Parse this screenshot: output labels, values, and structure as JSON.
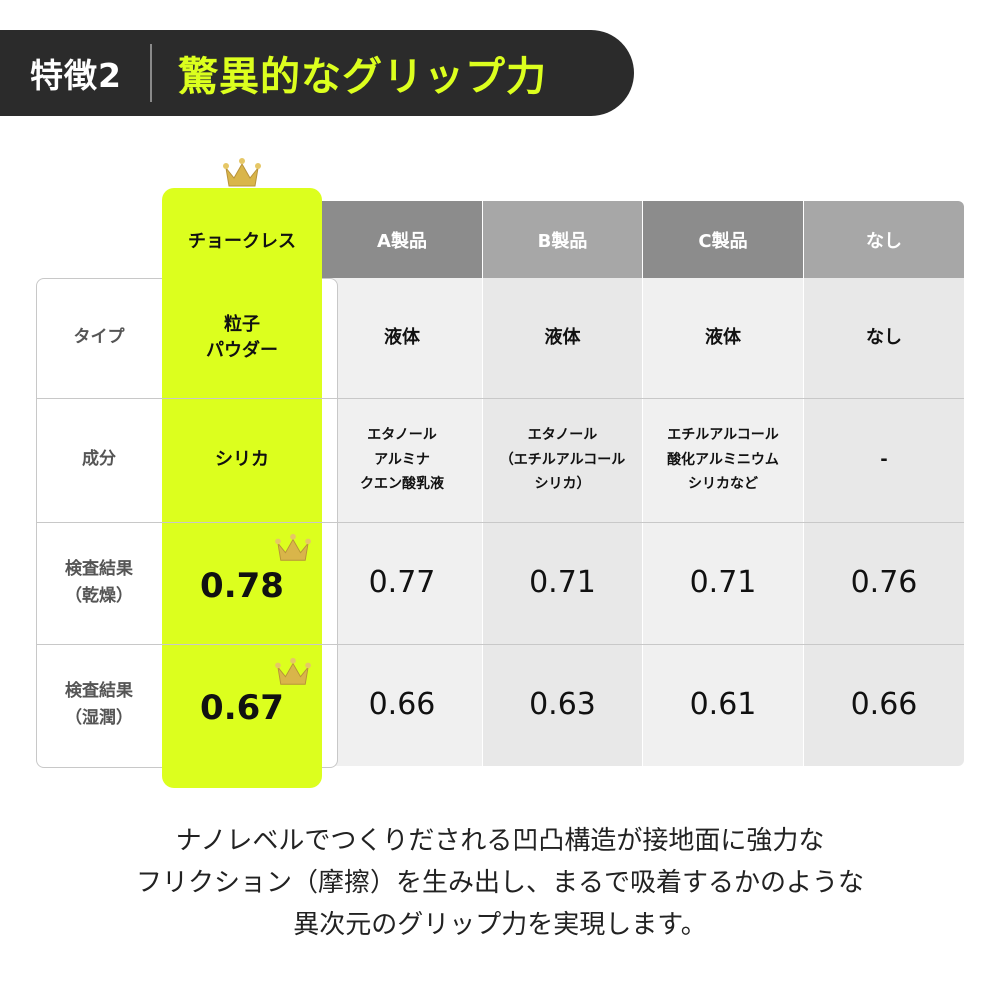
{
  "header": {
    "tag": "特徴2",
    "title": "驚異的なグリップ力"
  },
  "table": {
    "columns": [
      "チョークレス",
      "A製品",
      "B製品",
      "C製品",
      "なし"
    ],
    "rows": [
      {
        "label_lines": [
          "タイプ"
        ],
        "cells": [
          [
            "粒子",
            "パウダー"
          ],
          [
            "液体"
          ],
          [
            "液体"
          ],
          [
            "液体"
          ],
          [
            "なし"
          ]
        ]
      },
      {
        "label_lines": [
          "成分"
        ],
        "cells": [
          [
            "シリカ"
          ],
          [
            "エタノール",
            "アルミナ",
            "クエン酸乳液"
          ],
          [
            "エタノール",
            "（エチルアルコール",
            "シリカ）"
          ],
          [
            "エチルアルコール",
            "酸化アルミニウム",
            "シリカなど"
          ],
          [
            "-"
          ]
        ]
      },
      {
        "label_lines": [
          "検査結果",
          "（乾燥）"
        ],
        "values": [
          "0.78",
          "0.77",
          "0.71",
          "0.71",
          "0.76"
        ]
      },
      {
        "label_lines": [
          "検査結果",
          "（湿潤）"
        ],
        "values": [
          "0.67",
          "0.66",
          "0.63",
          "0.61",
          "0.66"
        ]
      }
    ]
  },
  "caption": [
    "ナノレベルでつくりだされる凹凸構造が接地面に強力な",
    "フリクション（摩擦）を生み出し、まるで吸着するかのような",
    "異次元のグリップ力を実現します。"
  ],
  "colors": {
    "accent": "#dcff1e",
    "banner": "#2b2b2b",
    "crown": "#d9b54a"
  },
  "icons": [
    "crown-icon"
  ]
}
